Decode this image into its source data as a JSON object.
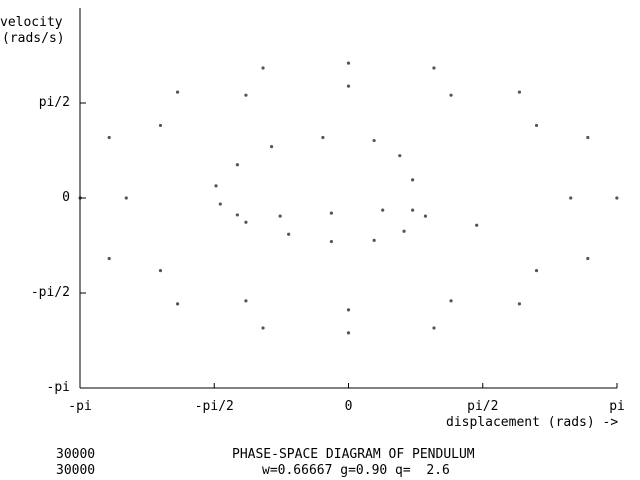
{
  "chart_data": {
    "type": "scatter",
    "title": "PHASE-SPACE DIAGRAM OF PENDULUM",
    "subtitle": "w=0.66667 g=0.90 q=  2.6",
    "xlabel": "displacement (rads) ->",
    "ylabel_line1": "velocity",
    "ylabel_line2": "(rads/s)",
    "xlim": [
      -3.14159,
      3.14159
    ],
    "ylim": [
      -3.14159,
      3.14159
    ],
    "x_ticks": [
      {
        "value": -3.14159,
        "label": "-pi"
      },
      {
        "value": -1.5708,
        "label": "-pi/2"
      },
      {
        "value": 0,
        "label": "0"
      },
      {
        "value": 1.5708,
        "label": "pi/2"
      },
      {
        "value": 3.14159,
        "label": "pi"
      }
    ],
    "y_ticks": [
      {
        "value": -3.14159,
        "label": "-pi"
      },
      {
        "value": -1.5708,
        "label": "-pi/2"
      },
      {
        "value": 0,
        "label": "0"
      },
      {
        "value": 1.5708,
        "label": "pi/2"
      }
    ],
    "grid": false,
    "marker_color": "#555555",
    "counters": [
      "30000",
      "30000"
    ],
    "params": {
      "w": 0.66667,
      "g": 0.9,
      "q": 2.6
    },
    "series": [
      {
        "points": [
          {
            "x": -3.14,
            "y": 0
          },
          {
            "x": -2.8,
            "y": 1.0
          },
          {
            "x": -2.0,
            "y": 1.75
          },
          {
            "x": -1.0,
            "y": 2.15
          },
          {
            "x": 0,
            "y": 2.23
          },
          {
            "x": 1.0,
            "y": 2.15
          },
          {
            "x": 2.0,
            "y": 1.75
          },
          {
            "x": 2.8,
            "y": 1.0
          },
          {
            "x": 3.14,
            "y": 0
          },
          {
            "x": 2.8,
            "y": -1.0
          },
          {
            "x": 2.0,
            "y": -1.75
          },
          {
            "x": 1.0,
            "y": -2.15
          },
          {
            "x": 0,
            "y": -2.23
          },
          {
            "x": -1.0,
            "y": -2.15
          },
          {
            "x": -2.0,
            "y": -1.75
          },
          {
            "x": -2.8,
            "y": -1.0
          }
        ]
      },
      {
        "points": [
          {
            "x": -2.6,
            "y": 0
          },
          {
            "x": -2.2,
            "y": 1.2
          },
          {
            "x": -1.2,
            "y": 1.7
          },
          {
            "x": 0,
            "y": 1.85
          },
          {
            "x": 1.2,
            "y": 1.7
          },
          {
            "x": 2.2,
            "y": 1.2
          },
          {
            "x": 2.6,
            "y": 0
          },
          {
            "x": 2.2,
            "y": -1.2
          },
          {
            "x": 1.2,
            "y": -1.7
          },
          {
            "x": 0,
            "y": -1.85
          },
          {
            "x": -1.2,
            "y": -1.7
          },
          {
            "x": -2.2,
            "y": -1.2
          }
        ]
      },
      {
        "points": [
          {
            "x": -1.55,
            "y": 0.2
          },
          {
            "x": -1.3,
            "y": 0.55
          },
          {
            "x": -0.9,
            "y": 0.85
          },
          {
            "x": -0.3,
            "y": 1.0
          },
          {
            "x": 0.3,
            "y": 0.95
          },
          {
            "x": 0.6,
            "y": 0.7
          },
          {
            "x": 0.75,
            "y": 0.3
          },
          {
            "x": 0.75,
            "y": -0.2
          },
          {
            "x": 0.65,
            "y": -0.55
          },
          {
            "x": 0.3,
            "y": -0.7
          },
          {
            "x": -0.2,
            "y": -0.72
          },
          {
            "x": -0.7,
            "y": -0.6
          },
          {
            "x": -1.2,
            "y": -0.4
          },
          {
            "x": -1.5,
            "y": -0.1
          },
          {
            "x": -1.3,
            "y": -0.28
          },
          {
            "x": -0.8,
            "y": -0.3
          },
          {
            "x": -0.2,
            "y": -0.25
          },
          {
            "x": 0.4,
            "y": -0.2
          },
          {
            "x": 0.9,
            "y": -0.3
          },
          {
            "x": 1.5,
            "y": -0.45
          }
        ]
      }
    ]
  }
}
